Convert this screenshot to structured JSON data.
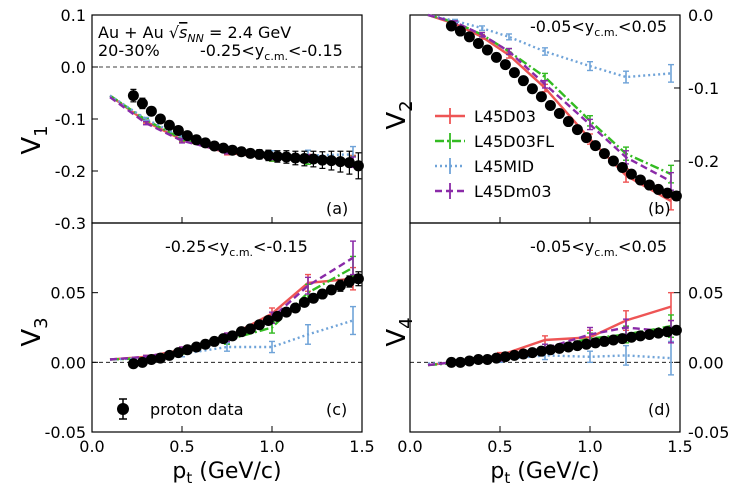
{
  "figure": {
    "xlabel": "p",
    "xlabel_sub": "t",
    "xlabel_units": " (GeV/c)",
    "ylabels": [
      "V",
      "V",
      "V",
      "V"
    ],
    "ylabel_subs": [
      "1",
      "2",
      "3",
      "4"
    ]
  },
  "legend": {
    "models": [
      "L45D03",
      "L45D03FL",
      "L45MID",
      "L45Dm03"
    ],
    "proton": "proton data"
  },
  "colors": {
    "L45D03": "#ee5555",
    "L45D03FL": "#33bb22",
    "L45MID": "#6fa3d8",
    "L45Dm03": "#8a2aa8",
    "data": "#000000"
  },
  "annotations": {
    "a_line1": "Au + Au ",
    "a_sqrt": "√",
    "a_snn": "s",
    "a_snn_sub": "NN",
    "a_energy": " = 2.4 GeV",
    "a_centrality": "20-30%",
    "a_rap": "-0.25<y",
    "a_rap_sub": "c.m.",
    "a_rap_end": "<-0.15",
    "b_rap": "-0.05<y",
    "b_rap_sub": "c.m.",
    "b_rap_end": "<0.05",
    "c_rap": "-0.25<y",
    "c_rap_sub": "c.m.",
    "c_rap_end": "<-0.15",
    "d_rap": "-0.05<y",
    "d_rap_sub": "c.m.",
    "d_rap_end": "<0.05"
  },
  "chart_data": [
    {
      "type": "line",
      "panel": "(a)",
      "ylabel": "V1",
      "xlim": [
        0.0,
        1.5
      ],
      "ylim": [
        -0.3,
        0.1
      ],
      "xticks": [
        "0.0",
        "0.5",
        "1.0",
        "1.5"
      ],
      "yticks": [
        "-0.3",
        "-0.2",
        "-0.1",
        "0.0",
        "0.1"
      ],
      "series": [
        {
          "name": "L45D03",
          "x": [
            0.1,
            0.3,
            0.5,
            0.75,
            1.0,
            1.2,
            1.45
          ],
          "y": [
            -0.055,
            -0.105,
            -0.14,
            -0.165,
            -0.175,
            -0.175,
            -0.18
          ],
          "err": [
            0.003,
            0.003,
            0.004,
            0.004,
            0.006,
            0.007,
            0.01
          ]
        },
        {
          "name": "L45D03FL",
          "x": [
            0.1,
            0.3,
            0.5,
            0.75,
            1.0,
            1.2,
            1.45
          ],
          "y": [
            -0.055,
            -0.102,
            -0.138,
            -0.16,
            -0.175,
            -0.18,
            -0.182
          ],
          "err": [
            0.003,
            0.003,
            0.004,
            0.004,
            0.006,
            0.007,
            0.01
          ]
        },
        {
          "name": "L45MID",
          "x": [
            0.1,
            0.3,
            0.5,
            0.75,
            1.0,
            1.2,
            1.45
          ],
          "y": [
            -0.055,
            -0.1,
            -0.135,
            -0.158,
            -0.168,
            -0.17,
            -0.168
          ],
          "err": [
            0.003,
            0.003,
            0.004,
            0.005,
            0.007,
            0.01,
            0.015
          ]
        },
        {
          "name": "L45Dm03",
          "x": [
            0.1,
            0.3,
            0.5,
            0.75,
            1.0,
            1.2,
            1.45
          ],
          "y": [
            -0.058,
            -0.108,
            -0.142,
            -0.163,
            -0.172,
            -0.176,
            -0.183
          ],
          "err": [
            0.003,
            0.003,
            0.004,
            0.004,
            0.006,
            0.007,
            0.01
          ]
        }
      ],
      "data": {
        "name": "proton data",
        "x": [
          0.23,
          0.28,
          0.33,
          0.38,
          0.43,
          0.48,
          0.53,
          0.58,
          0.63,
          0.68,
          0.73,
          0.78,
          0.83,
          0.88,
          0.93,
          0.98,
          1.03,
          1.08,
          1.13,
          1.18,
          1.23,
          1.28,
          1.33,
          1.38,
          1.43,
          1.48
        ],
        "y": [
          -0.055,
          -0.07,
          -0.085,
          -0.1,
          -0.112,
          -0.122,
          -0.132,
          -0.14,
          -0.146,
          -0.152,
          -0.156,
          -0.16,
          -0.163,
          -0.166,
          -0.168,
          -0.17,
          -0.172,
          -0.173,
          -0.175,
          -0.176,
          -0.177,
          -0.179,
          -0.18,
          -0.182,
          -0.184,
          -0.19
        ],
        "err": [
          0.012,
          0.01,
          0.008,
          0.007,
          0.006,
          0.006,
          0.006,
          0.006,
          0.006,
          0.006,
          0.007,
          0.007,
          0.008,
          0.008,
          0.009,
          0.01,
          0.011,
          0.012,
          0.013,
          0.014,
          0.015,
          0.016,
          0.018,
          0.02,
          0.022,
          0.025
        ]
      }
    },
    {
      "type": "line",
      "panel": "(b)",
      "ylabel": "V2",
      "xlim": [
        0.0,
        1.5
      ],
      "ylim": [
        -0.285,
        0.0
      ],
      "xticks": [],
      "yticks": [
        "-0.2",
        "-0.1",
        "0.0"
      ],
      "series": [
        {
          "name": "L45D03",
          "x": [
            0.1,
            0.25,
            0.4,
            0.55,
            0.75,
            1.0,
            1.2,
            1.45
          ],
          "y": [
            0.0,
            -0.012,
            -0.03,
            -0.055,
            -0.1,
            -0.17,
            -0.22,
            -0.255
          ],
          "err": [
            0.002,
            0.002,
            0.003,
            0.004,
            0.005,
            0.007,
            0.009,
            0.012
          ]
        },
        {
          "name": "L45D03FL",
          "x": [
            0.1,
            0.25,
            0.4,
            0.55,
            0.75,
            1.0,
            1.2,
            1.45
          ],
          "y": [
            0.0,
            -0.01,
            -0.027,
            -0.05,
            -0.085,
            -0.145,
            -0.19,
            -0.218
          ],
          "err": [
            0.002,
            0.002,
            0.003,
            0.004,
            0.005,
            0.007,
            0.009,
            0.012
          ]
        },
        {
          "name": "L45MID",
          "x": [
            0.1,
            0.25,
            0.4,
            0.55,
            0.75,
            1.0,
            1.2,
            1.45
          ],
          "y": [
            0.0,
            -0.008,
            -0.018,
            -0.03,
            -0.05,
            -0.07,
            -0.085,
            -0.08
          ],
          "err": [
            0.002,
            0.002,
            0.003,
            0.004,
            0.005,
            0.006,
            0.008,
            0.012
          ]
        },
        {
          "name": "L45Dm03",
          "x": [
            0.1,
            0.25,
            0.4,
            0.55,
            0.75,
            1.0,
            1.2,
            1.45
          ],
          "y": [
            0.0,
            -0.01,
            -0.027,
            -0.05,
            -0.095,
            -0.15,
            -0.195,
            -0.228
          ],
          "err": [
            0.002,
            0.002,
            0.003,
            0.004,
            0.005,
            0.007,
            0.009,
            0.012
          ]
        }
      ],
      "data": {
        "name": "proton data",
        "x": [
          0.23,
          0.28,
          0.33,
          0.38,
          0.43,
          0.48,
          0.53,
          0.58,
          0.63,
          0.68,
          0.73,
          0.78,
          0.83,
          0.88,
          0.93,
          0.98,
          1.03,
          1.08,
          1.13,
          1.18,
          1.23,
          1.28,
          1.33,
          1.38,
          1.43,
          1.48
        ],
        "y": [
          -0.015,
          -0.022,
          -0.03,
          -0.039,
          -0.048,
          -0.058,
          -0.068,
          -0.079,
          -0.09,
          -0.101,
          -0.112,
          -0.124,
          -0.135,
          -0.146,
          -0.157,
          -0.168,
          -0.179,
          -0.19,
          -0.2,
          -0.209,
          -0.218,
          -0.226,
          -0.233,
          -0.239,
          -0.244,
          -0.248
        ],
        "err": [
          0.002,
          0.002,
          0.002,
          0.002,
          0.002,
          0.002,
          0.002,
          0.002,
          0.002,
          0.002,
          0.003,
          0.003,
          0.003,
          0.003,
          0.003,
          0.003,
          0.003,
          0.004,
          0.004,
          0.004,
          0.004,
          0.004,
          0.005,
          0.005,
          0.005,
          0.006
        ]
      }
    },
    {
      "type": "line",
      "panel": "(c)",
      "ylabel": "V3",
      "xlim": [
        0.0,
        1.5
      ],
      "ylim": [
        -0.05,
        0.1
      ],
      "xticks": [
        "0.0",
        "0.5",
        "1.0",
        "1.5"
      ],
      "yticks": [
        "-0.05",
        "0.00",
        "0.05"
      ],
      "series": [
        {
          "name": "L45D03",
          "x": [
            0.1,
            0.3,
            0.5,
            0.75,
            1.0,
            1.2,
            1.45
          ],
          "y": [
            0.002,
            0.004,
            0.009,
            0.018,
            0.035,
            0.057,
            0.06
          ],
          "err": [
            0.001,
            0.001,
            0.002,
            0.003,
            0.004,
            0.006,
            0.008
          ]
        },
        {
          "name": "L45D03FL",
          "x": [
            0.1,
            0.3,
            0.5,
            0.75,
            1.0,
            1.2,
            1.45
          ],
          "y": [
            0.002,
            0.003,
            0.008,
            0.016,
            0.025,
            0.05,
            0.068
          ],
          "err": [
            0.001,
            0.001,
            0.002,
            0.003,
            0.004,
            0.006,
            0.008
          ]
        },
        {
          "name": "L45MID",
          "x": [
            0.1,
            0.3,
            0.5,
            0.75,
            1.0,
            1.2,
            1.45
          ],
          "y": [
            0.002,
            0.003,
            0.006,
            0.011,
            0.011,
            0.02,
            0.03
          ],
          "err": [
            0.001,
            0.001,
            0.002,
            0.003,
            0.004,
            0.007,
            0.01
          ]
        },
        {
          "name": "L45Dm03",
          "x": [
            0.1,
            0.3,
            0.5,
            0.75,
            1.0,
            1.2,
            1.45
          ],
          "y": [
            0.002,
            0.004,
            0.009,
            0.018,
            0.032,
            0.055,
            0.075
          ],
          "err": [
            0.001,
            0.001,
            0.002,
            0.003,
            0.004,
            0.006,
            0.012
          ]
        }
      ],
      "data": {
        "name": "proton data",
        "x": [
          0.23,
          0.28,
          0.33,
          0.38,
          0.43,
          0.48,
          0.53,
          0.58,
          0.63,
          0.68,
          0.73,
          0.78,
          0.83,
          0.88,
          0.93,
          0.98,
          1.03,
          1.08,
          1.13,
          1.18,
          1.23,
          1.28,
          1.33,
          1.38,
          1.43,
          1.48
        ],
        "y": [
          -0.001,
          0.0,
          0.002,
          0.003,
          0.005,
          0.007,
          0.009,
          0.011,
          0.013,
          0.015,
          0.017,
          0.019,
          0.022,
          0.024,
          0.027,
          0.03,
          0.033,
          0.036,
          0.039,
          0.043,
          0.046,
          0.049,
          0.052,
          0.055,
          0.058,
          0.06
        ],
        "err": [
          0.002,
          0.002,
          0.001,
          0.001,
          0.001,
          0.001,
          0.001,
          0.001,
          0.001,
          0.001,
          0.001,
          0.001,
          0.001,
          0.001,
          0.002,
          0.002,
          0.002,
          0.002,
          0.002,
          0.002,
          0.003,
          0.003,
          0.003,
          0.004,
          0.004,
          0.005
        ]
      }
    },
    {
      "type": "line",
      "panel": "(d)",
      "ylabel": "V4",
      "xlim": [
        0.0,
        1.5
      ],
      "ylim": [
        -0.05,
        0.1
      ],
      "xticks": [
        "0.0",
        "0.5",
        "1.0",
        "1.5"
      ],
      "yticks": [
        "-0.05",
        "0.00",
        "0.05"
      ],
      "series": [
        {
          "name": "L45D03",
          "x": [
            0.1,
            0.3,
            0.5,
            0.75,
            1.0,
            1.2,
            1.45
          ],
          "y": [
            -0.002,
            0.001,
            0.005,
            0.016,
            0.018,
            0.03,
            0.04
          ],
          "err": [
            0.001,
            0.001,
            0.002,
            0.003,
            0.005,
            0.007,
            0.01
          ]
        },
        {
          "name": "L45D03FL",
          "x": [
            0.1,
            0.3,
            0.5,
            0.75,
            1.0,
            1.2,
            1.45
          ],
          "y": [
            -0.002,
            0.0,
            0.003,
            0.01,
            0.017,
            0.02,
            0.026
          ],
          "err": [
            0.001,
            0.001,
            0.002,
            0.003,
            0.004,
            0.006,
            0.008
          ]
        },
        {
          "name": "L45MID",
          "x": [
            0.1,
            0.3,
            0.5,
            0.75,
            1.0,
            1.2,
            1.45
          ],
          "y": [
            -0.001,
            0.0,
            0.002,
            0.005,
            0.004,
            0.005,
            0.003
          ],
          "err": [
            0.001,
            0.001,
            0.002,
            0.003,
            0.004,
            0.007,
            0.012
          ]
        },
        {
          "name": "L45Dm03",
          "x": [
            0.1,
            0.3,
            0.5,
            0.75,
            1.0,
            1.2,
            1.45
          ],
          "y": [
            -0.002,
            0.001,
            0.003,
            0.01,
            0.02,
            0.025,
            0.022
          ],
          "err": [
            0.001,
            0.001,
            0.002,
            0.003,
            0.005,
            0.006,
            0.008
          ]
        }
      ],
      "data": {
        "name": "proton data",
        "x": [
          0.23,
          0.28,
          0.33,
          0.38,
          0.43,
          0.48,
          0.53,
          0.58,
          0.63,
          0.68,
          0.73,
          0.78,
          0.83,
          0.88,
          0.93,
          0.98,
          1.03,
          1.08,
          1.13,
          1.18,
          1.23,
          1.28,
          1.33,
          1.38,
          1.43,
          1.48
        ],
        "y": [
          0.0,
          0.0,
          0.001,
          0.002,
          0.002,
          0.003,
          0.004,
          0.005,
          0.006,
          0.007,
          0.008,
          0.009,
          0.01,
          0.011,
          0.012,
          0.013,
          0.014,
          0.015,
          0.016,
          0.017,
          0.018,
          0.019,
          0.02,
          0.021,
          0.022,
          0.023
        ],
        "err": [
          0.001,
          0.001,
          0.001,
          0.001,
          0.001,
          0.001,
          0.001,
          0.001,
          0.001,
          0.001,
          0.001,
          0.001,
          0.001,
          0.001,
          0.001,
          0.001,
          0.001,
          0.001,
          0.001,
          0.001,
          0.002,
          0.002,
          0.002,
          0.002,
          0.002,
          0.002
        ]
      }
    }
  ]
}
